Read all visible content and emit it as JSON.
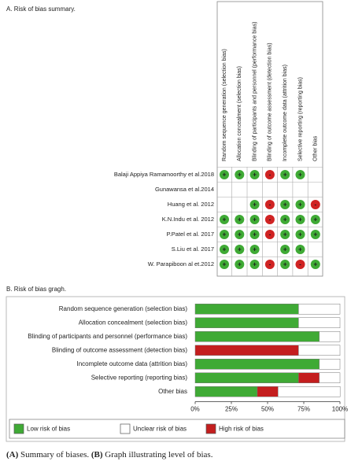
{
  "summary": {
    "title": "A. Risk of bias summary.",
    "domains": [
      "Random sequence generation (selection bias)",
      "Allocation concealment (selection bias)",
      "Blinding of participants and personnel (performance bias)",
      "Blinding of outcome assessment (detection bias)",
      "Incomplete outcome data (attrition bias)",
      "Selective reporting (reporting bias)",
      "Other bias"
    ],
    "studies": [
      "Balaji Appiya Ramamoorthy et al.2018",
      "Gunawansa et al.2014",
      "Huang et al. 2012",
      "K.N.Indu et al. 2012",
      "P.Patel et al. 2017",
      "S.Liu et al. 2017",
      "W. Parapiboon al et.2012"
    ],
    "judgments": [
      [
        "+",
        "+",
        "+",
        "-",
        "+",
        "+",
        null
      ],
      [
        null,
        null,
        null,
        null,
        null,
        null,
        null
      ],
      [
        null,
        null,
        "+",
        "-",
        "+",
        "+",
        "-"
      ],
      [
        "+",
        "+",
        "+",
        "-",
        "+",
        "+",
        "+"
      ],
      [
        "+",
        "+",
        "+",
        "-",
        "+",
        "+",
        "+"
      ],
      [
        "+",
        "+",
        "+",
        null,
        "+",
        "+",
        null
      ],
      [
        "+",
        "+",
        "+",
        "-",
        "+",
        "-",
        "+"
      ]
    ],
    "low_color": "#3faa35",
    "high_color": "#d02323"
  },
  "chart_data": {
    "type": "bar",
    "orientation": "horizontal",
    "stacked": true,
    "title": "B. Risk of bias gragh.",
    "categories": [
      "Random sequence generation (selection bias)",
      "Allocation concealment (selection bias)",
      "Blinding of participants and personnel (performance bias)",
      "Blinding of outcome assessment (detection bias)",
      "Incomplete outcome data (attrition bias)",
      "Selective reporting (reporting bias)",
      "Other bias"
    ],
    "series": [
      {
        "name": "Low risk of bias",
        "color": "#3faa35",
        "values": [
          71.4,
          71.4,
          85.7,
          0,
          85.7,
          71.4,
          42.9
        ]
      },
      {
        "name": "High risk of bias",
        "color": "#c41e1e",
        "values": [
          0,
          0,
          0,
          71.4,
          0,
          14.3,
          14.3
        ]
      },
      {
        "name": "Unclear risk of bias",
        "color": "#ffffff",
        "values": [
          28.6,
          28.6,
          14.3,
          28.6,
          14.3,
          14.3,
          42.9
        ]
      }
    ],
    "xlim": [
      0,
      100
    ],
    "xticks": [
      {
        "value": 0,
        "label": "0%"
      },
      {
        "value": 25,
        "label": "25%"
      },
      {
        "value": 50,
        "label": "50%"
      },
      {
        "value": 75,
        "label": "75%"
      },
      {
        "value": 100,
        "label": "100%"
      }
    ]
  },
  "caption": {
    "a_label": "(A)",
    "a_text": "Summary of biases.",
    "b_label": "(B)",
    "b_text": "Graph illustrating level of bias."
  }
}
